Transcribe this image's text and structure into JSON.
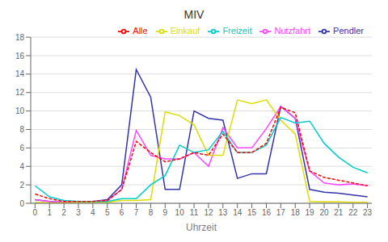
{
  "chart_data": {
    "type": "line",
    "title": "MIV",
    "xlabel": "Uhrzeit",
    "x": [
      0,
      1,
      2,
      3,
      4,
      5,
      6,
      7,
      8,
      9,
      10,
      11,
      12,
      13,
      14,
      15,
      16,
      17,
      18,
      19,
      20,
      21,
      22,
      23
    ],
    "series": [
      {
        "name": "Pendler",
        "color": "#3333AA",
        "line_style": "solid",
        "values": [
          0.4,
          0.2,
          0.1,
          0.2,
          0.2,
          0.4,
          2.0,
          14.5,
          11.5,
          1.5,
          1.5,
          10.0,
          9.2,
          9.0,
          2.7,
          3.2,
          3.2,
          10.5,
          9.2,
          1.5,
          1.2,
          1.1,
          0.9,
          0.7
        ]
      },
      {
        "name": "Nutzfahrt",
        "color": "#FF44FF",
        "line_style": "solid",
        "values": [
          0.4,
          0.2,
          0.1,
          0.2,
          0.2,
          0.3,
          1.5,
          7.9,
          5.2,
          4.8,
          4.8,
          5.5,
          4.0,
          8.2,
          6.0,
          6.0,
          8.1,
          10.5,
          9.2,
          3.5,
          2.2,
          2.0,
          2.1,
          1.9
        ]
      },
      {
        "name": "Einkauf",
        "color": "#DDDD00",
        "line_style": "solid",
        "values": [
          0.1,
          0.05,
          0.05,
          0.1,
          0.1,
          0.1,
          0.3,
          0.3,
          0.4,
          9.9,
          9.5,
          8.5,
          5.2,
          5.2,
          11.2,
          10.8,
          11.2,
          9.0,
          7.5,
          0.2,
          0.15,
          0.15,
          0.1,
          0.1
        ]
      },
      {
        "name": "Freizeit",
        "color": "#00CCCC",
        "line_style": "solid",
        "values": [
          1.9,
          0.7,
          0.3,
          0.2,
          0.2,
          0.2,
          0.5,
          0.5,
          2.0,
          3.0,
          6.3,
          5.5,
          5.8,
          7.8,
          5.5,
          5.5,
          6.3,
          9.3,
          8.7,
          8.9,
          6.5,
          5.0,
          3.9,
          3.3
        ]
      },
      {
        "name": "Alle",
        "color": "#FF0000",
        "line_style": "dashed",
        "values": [
          1.0,
          0.5,
          0.2,
          0.2,
          0.2,
          0.3,
          1.5,
          6.7,
          5.5,
          4.5,
          4.8,
          5.5,
          5.2,
          7.5,
          5.5,
          5.5,
          6.5,
          10.4,
          9.8,
          3.5,
          2.8,
          2.5,
          2.2,
          1.9
        ]
      }
    ],
    "xlim": [
      -0.3,
      23.3
    ],
    "xticks": [
      0,
      1,
      2,
      3,
      4,
      5,
      6,
      7,
      8,
      9,
      10,
      11,
      12,
      13,
      14,
      15,
      16,
      17,
      18,
      19,
      20,
      21,
      22,
      23
    ],
    "ylim": [
      0,
      18
    ],
    "yticks": [
      0,
      2,
      4,
      6,
      8,
      10,
      12,
      14,
      16,
      18
    ],
    "grid": "y",
    "legend": "upper right"
  }
}
